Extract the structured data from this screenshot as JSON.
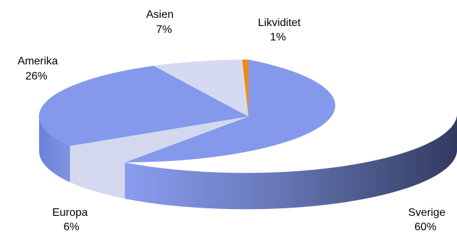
{
  "chart_data": {
    "type": "pie",
    "variant": "3d",
    "slices": [
      {
        "name": "Sverige",
        "value": 60,
        "label": "60%",
        "color": "#8499ec"
      },
      {
        "name": "Europa",
        "value": 6,
        "label": "6%",
        "color": "#d5d9f2"
      },
      {
        "name": "Amerika",
        "value": 26,
        "label": "26%",
        "color": "#8499ec"
      },
      {
        "name": "Asien",
        "value": 7,
        "label": "7%",
        "color": "#d5d9f2"
      },
      {
        "name": "Likviditet",
        "value": 1,
        "label": "1%",
        "color": "#f08c0a"
      }
    ],
    "title": "",
    "legend": "none"
  }
}
